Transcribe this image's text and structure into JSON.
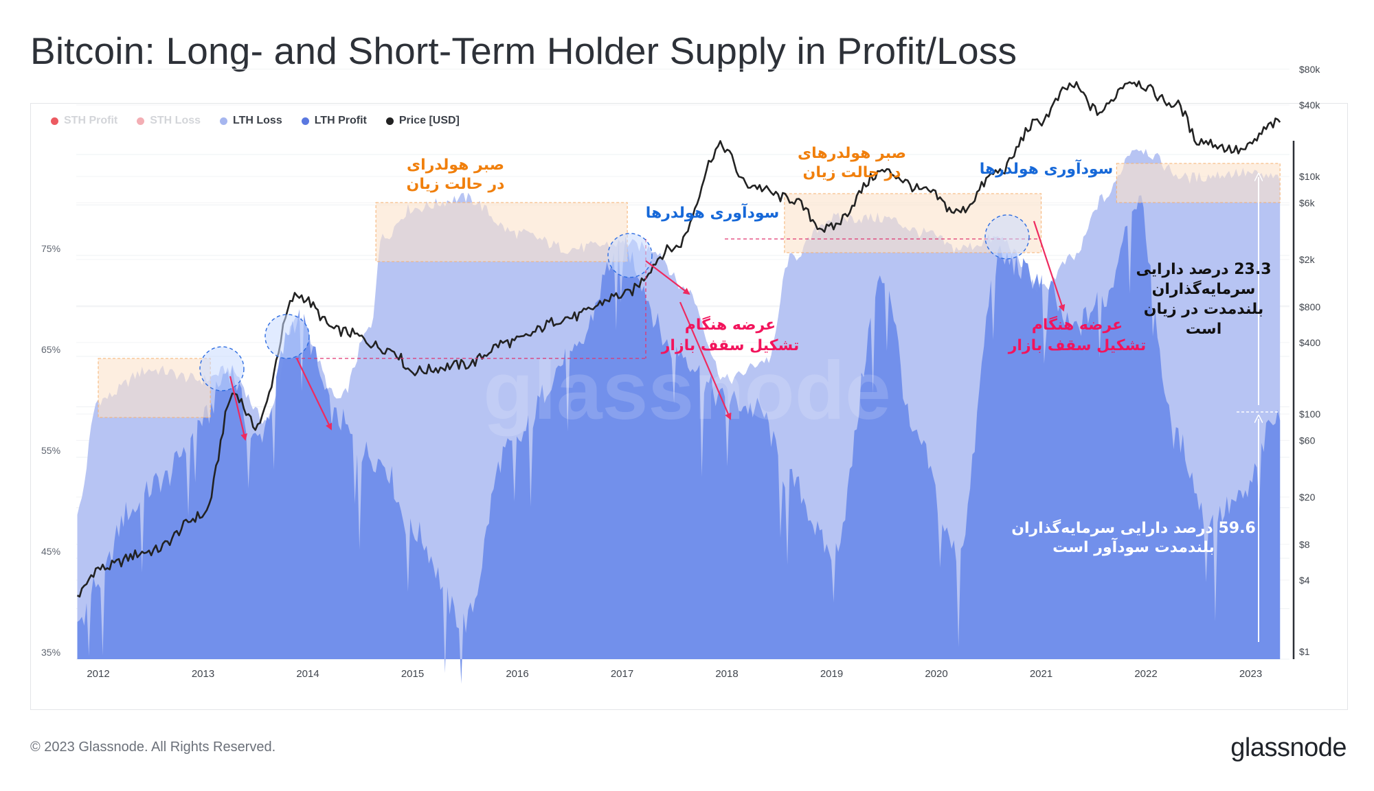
{
  "title": "Bitcoin: Long- and Short-Term Holder Supply in Profit/Loss",
  "footer": {
    "copyright": "© 2023 Glassnode. All Rights Reserved.",
    "logo": "glassnode"
  },
  "watermark": "glassnode",
  "colors": {
    "sth_profit": "#e8474f",
    "sth_loss": "#f2a6ad",
    "lth_loss": "#b3c1f2",
    "lth_profit": "#6f8eea",
    "price": "#222222",
    "orange_text": "#f07f0c",
    "blue_text": "#1668d8",
    "pink_text": "#f2145c",
    "highlight_fill": "#fbe3cc",
    "highlight_stroke": "#f5b070"
  },
  "legend": [
    {
      "label": "STH Profit",
      "color": "#e8474f",
      "faded": true
    },
    {
      "label": "STH Loss",
      "color": "#f2a6ad",
      "faded": true
    },
    {
      "label": "LTH Loss",
      "color": "#a6b6ef",
      "faded": false
    },
    {
      "label": "LTH Profit",
      "color": "#5a78e0",
      "faded": false
    },
    {
      "label": "Price [USD]",
      "color": "#222222",
      "faded": false
    }
  ],
  "chart_data": {
    "type": "area",
    "x_axis": {
      "labels": [
        "2012",
        "2013",
        "2014",
        "2015",
        "2016",
        "2017",
        "2018",
        "2019",
        "2020",
        "2021",
        "2022",
        "2023"
      ],
      "range": [
        "2011-10",
        "2023-05"
      ]
    },
    "y_axis_left": {
      "labels": [
        "75%",
        "65%",
        "55%",
        "45%",
        "35%"
      ],
      "values": [
        75,
        65,
        55,
        45,
        35
      ],
      "range": [
        35,
        85
      ]
    },
    "y_axis_right": {
      "scale": "log",
      "labels": [
        "$80k",
        "$40k",
        "$10k",
        "$6k",
        "$2k",
        "$800",
        "$400",
        "$100",
        "$60",
        "$20",
        "$8",
        "$4",
        "$1"
      ],
      "values": [
        80000,
        40000,
        10000,
        6000,
        2000,
        800,
        400,
        100,
        60,
        20,
        8,
        4,
        1
      ]
    },
    "series": [
      {
        "name": "LTH Loss",
        "unit": "% of supply (top of stacked area)",
        "points": [
          [
            2011.8,
            49
          ],
          [
            2012.0,
            60
          ],
          [
            2012.5,
            63
          ],
          [
            2013.0,
            62
          ],
          [
            2013.25,
            63
          ],
          [
            2013.6,
            58
          ],
          [
            2013.9,
            68
          ],
          [
            2014.3,
            60
          ],
          [
            2014.6,
            67
          ],
          [
            2014.7,
            76
          ],
          [
            2015.0,
            79
          ],
          [
            2015.5,
            80
          ],
          [
            2016.0,
            76.5
          ],
          [
            2016.5,
            75
          ],
          [
            2017.0,
            75.5
          ],
          [
            2017.3,
            75
          ],
          [
            2017.6,
            71
          ],
          [
            2018.0,
            62
          ],
          [
            2018.4,
            64
          ],
          [
            2018.6,
            74
          ],
          [
            2019.0,
            78
          ],
          [
            2019.5,
            78
          ],
          [
            2019.9,
            76.5
          ],
          [
            2020.2,
            75
          ],
          [
            2020.6,
            76
          ],
          [
            2021.0,
            71
          ],
          [
            2021.3,
            74
          ],
          [
            2021.6,
            80
          ],
          [
            2021.9,
            85
          ],
          [
            2022.4,
            82
          ],
          [
            2022.9,
            82.5
          ],
          [
            2023.25,
            82
          ]
        ]
      },
      {
        "name": "LTH Profit",
        "unit": "% of supply",
        "points": [
          [
            2011.8,
            38
          ],
          [
            2012.0,
            42
          ],
          [
            2012.3,
            49
          ],
          [
            2012.6,
            52
          ],
          [
            2013.0,
            58
          ],
          [
            2013.25,
            63
          ],
          [
            2013.5,
            56
          ],
          [
            2013.9,
            68
          ],
          [
            2014.3,
            58
          ],
          [
            2014.5,
            55
          ],
          [
            2014.7,
            54
          ],
          [
            2015.0,
            47
          ],
          [
            2015.5,
            38
          ],
          [
            2015.9,
            55
          ],
          [
            2016.5,
            64
          ],
          [
            2017.0,
            75
          ],
          [
            2017.5,
            65
          ],
          [
            2018.0,
            60
          ],
          [
            2018.3,
            59
          ],
          [
            2018.6,
            52
          ],
          [
            2019.0,
            45
          ],
          [
            2019.5,
            72
          ],
          [
            2019.8,
            56
          ],
          [
            2020.2,
            45
          ],
          [
            2020.6,
            74
          ],
          [
            2021.0,
            72
          ],
          [
            2021.3,
            67
          ],
          [
            2021.6,
            70
          ],
          [
            2021.9,
            80
          ],
          [
            2022.3,
            56
          ],
          [
            2022.6,
            48
          ],
          [
            2022.9,
            50
          ],
          [
            2023.25,
            58
          ]
        ]
      },
      {
        "name": "Price [USD]",
        "unit": "USD",
        "points": [
          [
            2011.8,
            3
          ],
          [
            2012.0,
            5
          ],
          [
            2012.5,
            7
          ],
          [
            2013.0,
            14
          ],
          [
            2013.3,
            150
          ],
          [
            2013.5,
            80
          ],
          [
            2013.9,
            1000
          ],
          [
            2014.3,
            500
          ],
          [
            2014.8,
            350
          ],
          [
            2015.0,
            230
          ],
          [
            2015.5,
            260
          ],
          [
            2015.9,
            400
          ],
          [
            2016.5,
            650
          ],
          [
            2017.0,
            1000
          ],
          [
            2017.5,
            2500
          ],
          [
            2017.95,
            18000
          ],
          [
            2018.2,
            8500
          ],
          [
            2018.6,
            6500
          ],
          [
            2018.95,
            3600
          ],
          [
            2019.5,
            11000
          ],
          [
            2019.9,
            7500
          ],
          [
            2020.2,
            5000
          ],
          [
            2020.6,
            11000
          ],
          [
            2020.95,
            28000
          ],
          [
            2021.3,
            58000
          ],
          [
            2021.55,
            35000
          ],
          [
            2021.85,
            64000
          ],
          [
            2022.3,
            40000
          ],
          [
            2022.5,
            20000
          ],
          [
            2022.9,
            16500
          ],
          [
            2023.25,
            28000
          ]
        ]
      }
    ],
    "annotations": [
      {
        "text": "صبر هولدرای\nدر حالت زیان",
        "color": "orange"
      },
      {
        "text": "سودآوری هولدرها",
        "color": "blue"
      },
      {
        "text": "صبر هولدرهای\nدر حالت زیان",
        "color": "orange"
      },
      {
        "text": "سودآوری هولدرها",
        "color": "blue"
      },
      {
        "text": "عرضه هنگام\nتشکیل سقف بازار",
        "color": "pink"
      },
      {
        "text": "عرضه هنگام\nتشکیل سقف بازار",
        "color": "pink"
      },
      {
        "text": "23.3 درصد دارایی\nسرمایه‌گذاران\nبلندمدت در زیان\nاست",
        "color": "black"
      },
      {
        "text": "59.6 درصد دارایی سرمایه‌گذاران\nبلندمدت سودآور است",
        "color": "white"
      }
    ]
  }
}
